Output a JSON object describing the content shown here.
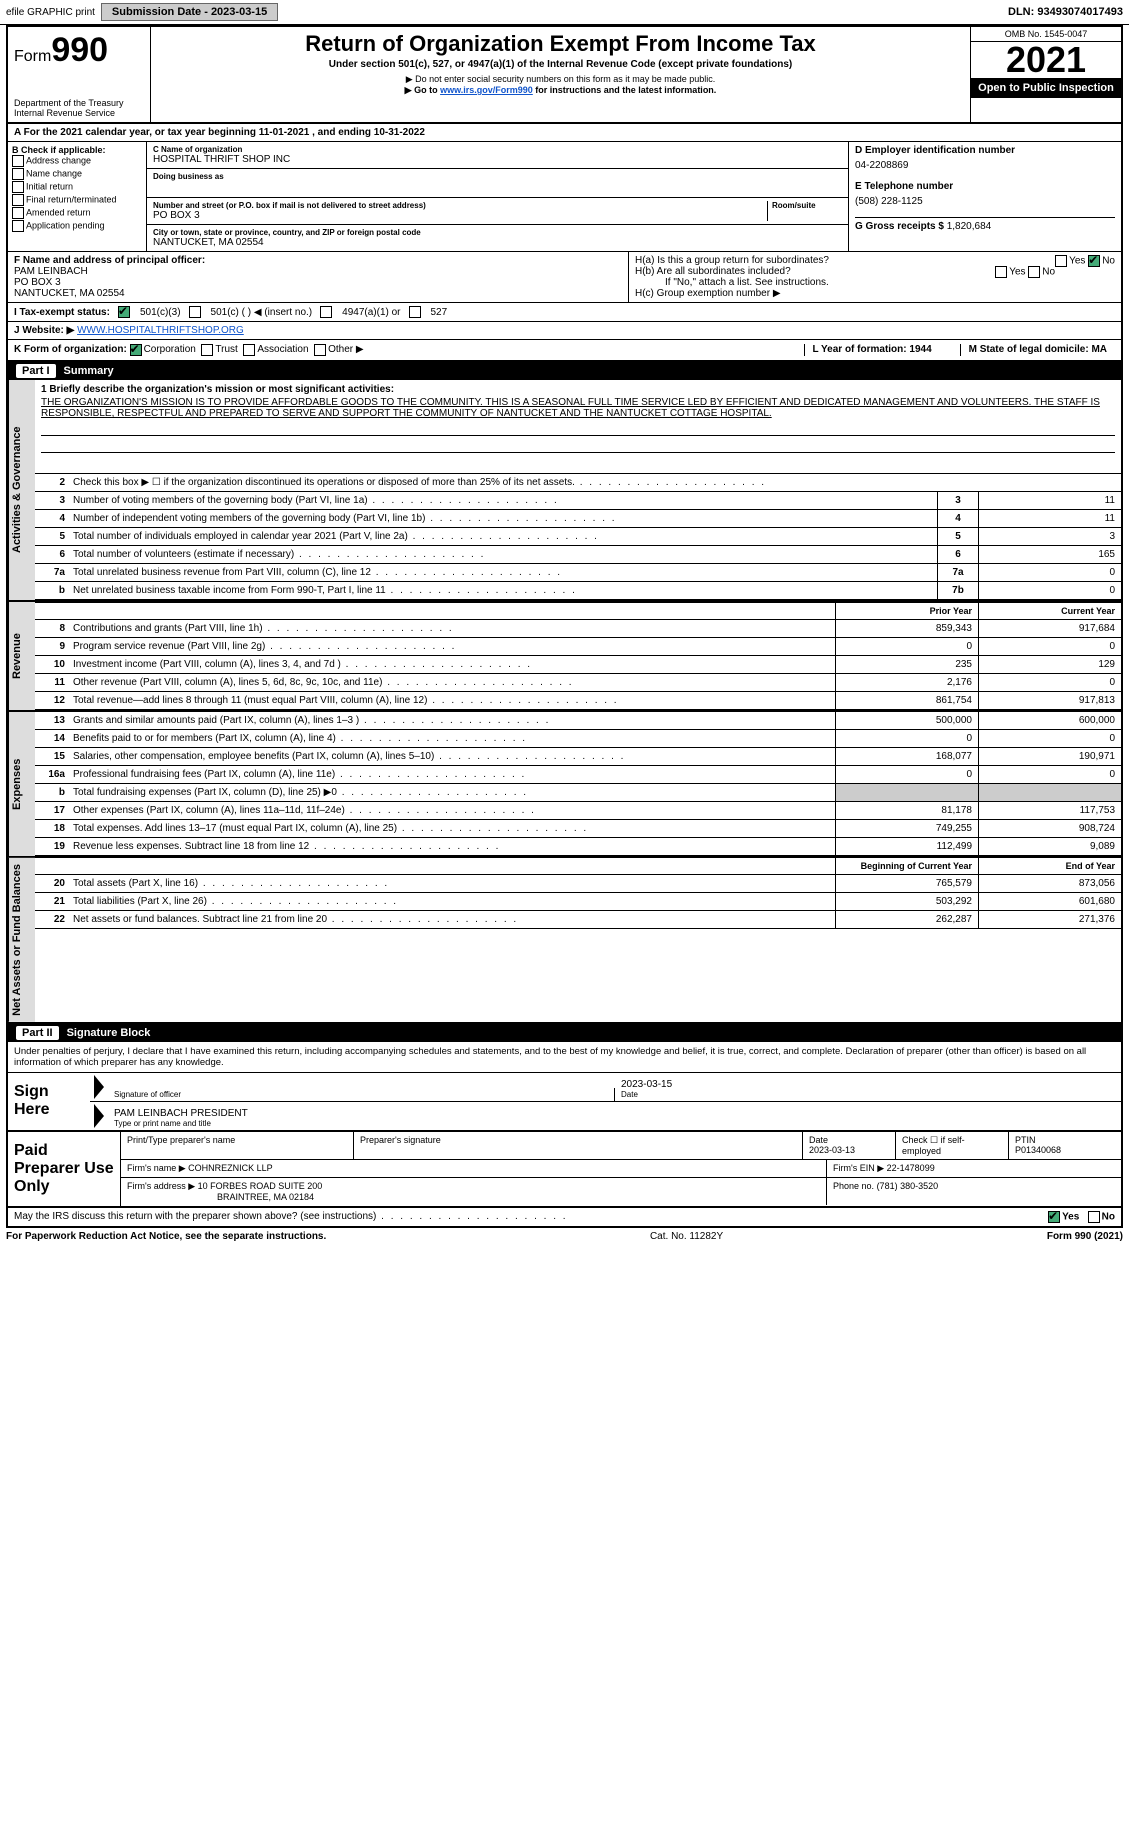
{
  "topbar": {
    "efile": "efile GRAPHIC print",
    "submission_label": "Submission Date - 2023-03-15",
    "dln": "DLN: 93493074017493"
  },
  "header": {
    "form_label": "Form",
    "form_number": "990",
    "dept": "Department of the Treasury",
    "irs": "Internal Revenue Service",
    "title": "Return of Organization Exempt From Income Tax",
    "subtitle": "Under section 501(c), 527, or 4947(a)(1) of the Internal Revenue Code (except private foundations)",
    "note1": "▶ Do not enter social security numbers on this form as it may be made public.",
    "note2_pre": "▶ Go to ",
    "note2_link": "www.irs.gov/Form990",
    "note2_post": " for instructions and the latest information.",
    "omb": "OMB No. 1545-0047",
    "year": "2021",
    "open_public": "Open to Public Inspection"
  },
  "row_a": {
    "text": "A For the 2021 calendar year, or tax year beginning 11-01-2021   , and ending 10-31-2022"
  },
  "col_b": {
    "label": "B Check if applicable:",
    "items": [
      "Address change",
      "Name change",
      "Initial return",
      "Final return/terminated",
      "Amended return",
      "Application pending"
    ]
  },
  "block_c": {
    "name_label": "C Name of organization",
    "name": "HOSPITAL THRIFT SHOP INC",
    "dba_label": "Doing business as",
    "addr_label": "Number and street (or P.O. box if mail is not delivered to street address)",
    "room_label": "Room/suite",
    "addr": "PO BOX 3",
    "city_label": "City or town, state or province, country, and ZIP or foreign postal code",
    "city": "NANTUCKET, MA  02554"
  },
  "block_d": {
    "label": "D Employer identification number",
    "value": "04-2208869"
  },
  "block_e": {
    "label": "E Telephone number",
    "value": "(508) 228-1125"
  },
  "block_g": {
    "label": "G Gross receipts $",
    "value": "1,820,684"
  },
  "block_f": {
    "label": "F  Name and address of principal officer:",
    "name": "PAM LEINBACH",
    "addr1": "PO BOX 3",
    "addr2": "NANTUCKET, MA  02554"
  },
  "block_h": {
    "ha": "H(a)  Is this a group return for subordinates?",
    "ha_yes": "Yes",
    "ha_no": "No",
    "hb": "H(b)  Are all subordinates included?",
    "hb_yes": "Yes",
    "hb_no": "No",
    "hb_note": "If \"No,\" attach a list. See instructions.",
    "hc": "H(c)  Group exemption number ▶"
  },
  "row_i": {
    "label": "I  Tax-exempt status:",
    "o1": "501(c)(3)",
    "o2": "501(c) (  ) ◀ (insert no.)",
    "o3": "4947(a)(1) or",
    "o4": "527"
  },
  "row_j": {
    "label": "J  Website: ▶",
    "value": "WWW.HOSPITALTHRIFTSHOP.ORG"
  },
  "row_k": {
    "label": "K Form of organization:",
    "o1": "Corporation",
    "o2": "Trust",
    "o3": "Association",
    "o4": "Other ▶",
    "l": "L Year of formation: 1944",
    "m": "M State of legal domicile: MA"
  },
  "part1": {
    "label": "Part I",
    "title": "Summary"
  },
  "mission": {
    "label": "1  Briefly describe the organization's mission or most significant activities:",
    "text": "THE ORGANIZATION'S MISSION IS TO PROVIDE AFFORDABLE GOODS TO THE COMMUNITY. THIS IS A SEASONAL FULL TIME SERVICE LED BY EFFICIENT AND DEDICATED MANAGEMENT AND VOLUNTEERS. THE STAFF IS RESPONSIBLE, RESPECTFUL AND PREPARED TO SERVE AND SUPPORT THE COMMUNITY OF NANTUCKET AND THE NANTUCKET COTTAGE HOSPITAL."
  },
  "gov_lines": [
    {
      "n": "2",
      "t": "Check this box ▶ ☐ if the organization discontinued its operations or disposed of more than 25% of its net assets.",
      "box": "",
      "v": ""
    },
    {
      "n": "3",
      "t": "Number of voting members of the governing body (Part VI, line 1a)",
      "box": "3",
      "v": "11"
    },
    {
      "n": "4",
      "t": "Number of independent voting members of the governing body (Part VI, line 1b)",
      "box": "4",
      "v": "11"
    },
    {
      "n": "5",
      "t": "Total number of individuals employed in calendar year 2021 (Part V, line 2a)",
      "box": "5",
      "v": "3"
    },
    {
      "n": "6",
      "t": "Total number of volunteers (estimate if necessary)",
      "box": "6",
      "v": "165"
    },
    {
      "n": "7a",
      "t": "Total unrelated business revenue from Part VIII, column (C), line 12",
      "box": "7a",
      "v": "0"
    },
    {
      "n": "b",
      "t": "Net unrelated business taxable income from Form 990-T, Part I, line 11",
      "box": "7b",
      "v": "0"
    }
  ],
  "col_headers": {
    "prior": "Prior Year",
    "current": "Current Year"
  },
  "revenue_lines": [
    {
      "n": "8",
      "t": "Contributions and grants (Part VIII, line 1h)",
      "p": "859,343",
      "c": "917,684"
    },
    {
      "n": "9",
      "t": "Program service revenue (Part VIII, line 2g)",
      "p": "0",
      "c": "0"
    },
    {
      "n": "10",
      "t": "Investment income (Part VIII, column (A), lines 3, 4, and 7d )",
      "p": "235",
      "c": "129"
    },
    {
      "n": "11",
      "t": "Other revenue (Part VIII, column (A), lines 5, 6d, 8c, 9c, 10c, and 11e)",
      "p": "2,176",
      "c": "0"
    },
    {
      "n": "12",
      "t": "Total revenue—add lines 8 through 11 (must equal Part VIII, column (A), line 12)",
      "p": "861,754",
      "c": "917,813"
    }
  ],
  "expense_lines": [
    {
      "n": "13",
      "t": "Grants and similar amounts paid (Part IX, column (A), lines 1–3 )",
      "p": "500,000",
      "c": "600,000"
    },
    {
      "n": "14",
      "t": "Benefits paid to or for members (Part IX, column (A), line 4)",
      "p": "0",
      "c": "0"
    },
    {
      "n": "15",
      "t": "Salaries, other compensation, employee benefits (Part IX, column (A), lines 5–10)",
      "p": "168,077",
      "c": "190,971"
    },
    {
      "n": "16a",
      "t": "Professional fundraising fees (Part IX, column (A), line 11e)",
      "p": "0",
      "c": "0"
    },
    {
      "n": "b",
      "t": "Total fundraising expenses (Part IX, column (D), line 25) ▶0",
      "p": "",
      "c": "",
      "shaded": true
    },
    {
      "n": "17",
      "t": "Other expenses (Part IX, column (A), lines 11a–11d, 11f–24e)",
      "p": "81,178",
      "c": "117,753"
    },
    {
      "n": "18",
      "t": "Total expenses. Add lines 13–17 (must equal Part IX, column (A), line 25)",
      "p": "749,255",
      "c": "908,724"
    },
    {
      "n": "19",
      "t": "Revenue less expenses. Subtract line 18 from line 12",
      "p": "112,499",
      "c": "9,089"
    }
  ],
  "net_headers": {
    "begin": "Beginning of Current Year",
    "end": "End of Year"
  },
  "net_lines": [
    {
      "n": "20",
      "t": "Total assets (Part X, line 16)",
      "p": "765,579",
      "c": "873,056"
    },
    {
      "n": "21",
      "t": "Total liabilities (Part X, line 26)",
      "p": "503,292",
      "c": "601,680"
    },
    {
      "n": "22",
      "t": "Net assets or fund balances. Subtract line 21 from line 20",
      "p": "262,287",
      "c": "271,376"
    }
  ],
  "vtabs": {
    "gov": "Activities & Governance",
    "rev": "Revenue",
    "exp": "Expenses",
    "net": "Net Assets or Fund Balances"
  },
  "part2": {
    "label": "Part II",
    "title": "Signature Block"
  },
  "sig_intro": "Under penalties of perjury, I declare that I have examined this return, including accompanying schedules and statements, and to the best of my knowledge and belief, it is true, correct, and complete. Declaration of preparer (other than officer) is based on all information of which preparer has any knowledge.",
  "sign": {
    "label": "Sign Here",
    "sig_label": "Signature of officer",
    "date_label": "Date",
    "date": "2023-03-15",
    "name": "PAM LEINBACH  PRESIDENT",
    "name_label": "Type or print name and title"
  },
  "prep": {
    "label": "Paid Preparer Use Only",
    "h_name": "Print/Type preparer's name",
    "h_sig": "Preparer's signature",
    "h_date": "Date",
    "date": "2023-03-13",
    "h_check": "Check ☐ if self-employed",
    "h_ptin": "PTIN",
    "ptin": "P01340068",
    "firm_label": "Firm's name    ▶",
    "firm": "COHNREZNICK LLP",
    "ein_label": "Firm's EIN ▶",
    "ein": "22-1478099",
    "addr_label": "Firm's address ▶",
    "addr1": "10 FORBES ROAD SUITE 200",
    "addr2": "BRAINTREE, MA  02184",
    "phone_label": "Phone no.",
    "phone": "(781) 380-3520"
  },
  "discuss": {
    "text": "May the IRS discuss this return with the preparer shown above? (see instructions)",
    "yes": "Yes",
    "no": "No"
  },
  "footer": {
    "left": "For Paperwork Reduction Act Notice, see the separate instructions.",
    "mid": "Cat. No. 11282Y",
    "right": "Form 990 (2021)"
  }
}
